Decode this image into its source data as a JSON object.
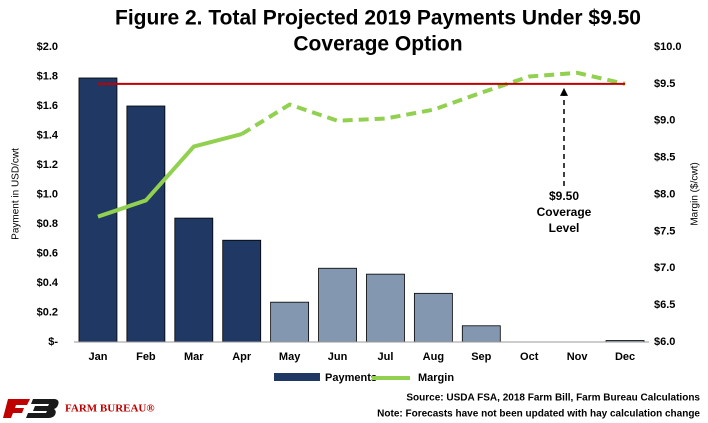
{
  "chart_data": {
    "type": "bar_line",
    "title": [
      "Figure 2. Total Projected 2019 Payments Under $9.50",
      "Coverage Option"
    ],
    "y_label": "Payment in USD/cwt",
    "y2_label": "Margin ($/cwt)",
    "categories": [
      "Jan",
      "Feb",
      "Mar",
      "Apr",
      "May",
      "Jun",
      "Jul",
      "Aug",
      "Sep",
      "Oct",
      "Nov",
      "Dec"
    ],
    "series": [
      {
        "name": "Payments",
        "type": "bar",
        "color": "#1f3864",
        "colors": [
          "#1f3864",
          "#1f3864",
          "#1f3864",
          "#1f3864",
          "#8497b0",
          "#8497b0",
          "#8497b0",
          "#8497b0",
          "#8497b0",
          "#8497b0",
          "#8497b0",
          "#8497b0"
        ],
        "values": [
          1.79,
          1.6,
          0.84,
          0.69,
          0.27,
          0.5,
          0.46,
          0.33,
          0.11,
          0,
          0,
          0.01
        ]
      },
      {
        "name": "Margin",
        "type": "line",
        "axis": "y2",
        "color": "#92d050",
        "dashed_from_index": 3,
        "values": [
          7.7,
          7.92,
          8.65,
          8.82,
          9.22,
          9.0,
          9.03,
          9.15,
          9.38,
          9.6,
          9.65,
          9.5
        ]
      }
    ],
    "reference_line": {
      "value": 9.5,
      "axis": "y2",
      "color": "#c00000"
    },
    "annotation": [
      "$9.50",
      "Coverage",
      "Level"
    ],
    "ylim": [
      0,
      2.0
    ],
    "yticks": [
      {
        "value": 0,
        "label": "$-"
      },
      {
        "value": 0.2,
        "label": "$0.2"
      },
      {
        "value": 0.4,
        "label": "$0.4"
      },
      {
        "value": 0.6,
        "label": "$0.6"
      },
      {
        "value": 0.8,
        "label": "$0.8"
      },
      {
        "value": 1.0,
        "label": "$1.0"
      },
      {
        "value": 1.2,
        "label": "$1.2"
      },
      {
        "value": 1.4,
        "label": "$1.4"
      },
      {
        "value": 1.6,
        "label": "$1.6"
      },
      {
        "value": 1.8,
        "label": "$1.8"
      },
      {
        "value": 2.0,
        "label": "$2.0"
      }
    ],
    "y2lim": [
      6.0,
      10.0
    ],
    "y2ticks": [
      {
        "value": 6.0,
        "label": "$6.0"
      },
      {
        "value": 6.5,
        "label": "$6.5"
      },
      {
        "value": 7.0,
        "label": "$7.0"
      },
      {
        "value": 7.5,
        "label": "$7.5"
      },
      {
        "value": 8.0,
        "label": "$8.0"
      },
      {
        "value": 8.5,
        "label": "$8.5"
      },
      {
        "value": 9.0,
        "label": "$9.0"
      },
      {
        "value": 9.5,
        "label": "$9.5"
      },
      {
        "value": 10.0,
        "label": "$10.0"
      }
    ],
    "source": "Source: USDA FSA, 2018 Farm Bill, Farm Bureau Calculations",
    "note": "Note: Forecasts have not been updated with hay calculation change",
    "logo_text": "FARM BUREAU®"
  }
}
